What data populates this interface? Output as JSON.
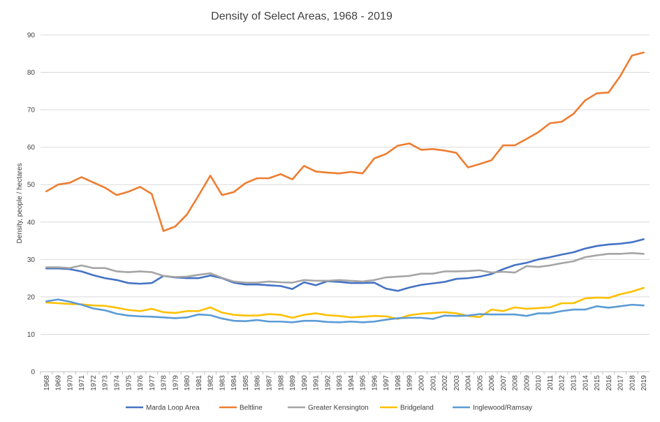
{
  "chart_data": {
    "type": "line",
    "title": "Density of Select Areas, 1968 - 2019",
    "xlabel": "",
    "ylabel": "Density, people / hectares",
    "ylim": [
      0,
      90
    ],
    "yticks": [
      0,
      10,
      20,
      30,
      40,
      50,
      60,
      70,
      80,
      90
    ],
    "grid": true,
    "legend_position": "bottom",
    "categories": [
      "1968",
      "1969",
      "1970",
      "1971",
      "1972",
      "1973",
      "1974",
      "1975",
      "1976",
      "1977",
      "1978",
      "1979",
      "1980",
      "1981",
      "1982",
      "1983",
      "1984",
      "1985",
      "1986",
      "1987",
      "1988",
      "1989",
      "1990",
      "1991",
      "1992",
      "1993",
      "1994",
      "1995",
      "1996",
      "1997",
      "1998",
      "1999",
      "2000",
      "2001",
      "2002",
      "2003",
      "2004",
      "2005",
      "2006",
      "2007",
      "2008",
      "2009",
      "2010",
      "2011",
      "2012",
      "2013",
      "2014",
      "2015",
      "2016",
      "2017",
      "2018",
      "2019"
    ],
    "series": [
      {
        "name": "Marda Loop Area",
        "color": "#4472c4",
        "values": [
          27.6,
          27.6,
          27.4,
          26.8,
          25.8,
          25.0,
          24.5,
          23.7,
          23.5,
          23.7,
          25.6,
          25.2,
          25.0,
          25.0,
          25.7,
          25.0,
          23.8,
          23.3,
          23.3,
          23.1,
          22.9,
          22.1,
          23.9,
          23.1,
          24.2,
          24.0,
          23.7,
          23.7,
          23.8,
          22.2,
          21.6,
          22.5,
          23.2,
          23.6,
          24.0,
          24.8,
          25.0,
          25.4,
          26.1,
          27.4,
          28.5,
          29.1,
          30.0,
          30.6,
          31.3,
          31.9,
          32.9,
          33.6,
          34.0,
          34.2,
          34.6,
          35.4
        ]
      },
      {
        "name": "Beltline",
        "color": "#ed7d31",
        "values": [
          48.2,
          50.0,
          50.5,
          52.0,
          50.6,
          49.2,
          47.2,
          48.1,
          49.4,
          47.5,
          37.6,
          38.8,
          42.0,
          47.1,
          52.4,
          47.2,
          48.0,
          50.4,
          51.7,
          51.7,
          52.8,
          51.4,
          55.0,
          53.5,
          53.2,
          53.0,
          53.4,
          53.0,
          57.0,
          58.2,
          60.4,
          61.0,
          59.3,
          59.5,
          59.1,
          58.5,
          54.6,
          55.5,
          56.5,
          60.5,
          60.5,
          62.2,
          64.0,
          66.4,
          66.8,
          68.9,
          72.5,
          74.4,
          74.6,
          79.0,
          84.5,
          85.3
        ]
      },
      {
        "name": "Greater Kensington",
        "color": "#a5a5a5",
        "values": [
          27.9,
          27.9,
          27.7,
          28.4,
          27.7,
          27.7,
          26.8,
          26.6,
          26.8,
          26.6,
          25.6,
          25.3,
          25.4,
          25.9,
          26.3,
          25.1,
          24.1,
          23.8,
          23.8,
          24.1,
          23.9,
          23.8,
          24.5,
          24.3,
          24.3,
          24.5,
          24.3,
          24.1,
          24.5,
          25.2,
          25.4,
          25.6,
          26.2,
          26.2,
          26.8,
          26.8,
          26.9,
          27.1,
          26.5,
          26.7,
          26.5,
          28.2,
          28.0,
          28.4,
          29.0,
          29.5,
          30.6,
          31.1,
          31.5,
          31.5,
          31.7,
          31.5
        ]
      },
      {
        "name": "Bridgeland",
        "color": "#ffc000",
        "values": [
          18.5,
          18.3,
          18.1,
          18.0,
          17.7,
          17.6,
          17.1,
          16.5,
          16.2,
          16.8,
          15.9,
          15.7,
          16.2,
          16.2,
          17.2,
          15.8,
          15.2,
          15.0,
          15.0,
          15.4,
          15.2,
          14.4,
          15.2,
          15.6,
          15.1,
          14.9,
          14.5,
          14.7,
          14.9,
          14.8,
          14.1,
          15.1,
          15.5,
          15.7,
          15.9,
          15.6,
          14.9,
          14.6,
          16.6,
          16.2,
          17.2,
          16.8,
          17.0,
          17.2,
          18.3,
          18.3,
          19.6,
          19.8,
          19.7,
          20.7,
          21.4,
          22.4
        ]
      },
      {
        "name": "Inglewood/Ramsay",
        "color": "#5b9bd5",
        "values": [
          18.8,
          19.3,
          18.7,
          17.9,
          16.9,
          16.4,
          15.5,
          15.0,
          14.8,
          14.7,
          14.5,
          14.3,
          14.5,
          15.3,
          15.1,
          14.2,
          13.6,
          13.5,
          13.8,
          13.4,
          13.4,
          13.2,
          13.6,
          13.6,
          13.3,
          13.2,
          13.4,
          13.2,
          13.4,
          13.9,
          14.3,
          14.4,
          14.4,
          14.1,
          15.0,
          14.9,
          15.0,
          15.4,
          15.3,
          15.3,
          15.3,
          14.9,
          15.6,
          15.6,
          16.2,
          16.6,
          16.6,
          17.5,
          17.1,
          17.5,
          17.9,
          17.7
        ]
      }
    ]
  }
}
